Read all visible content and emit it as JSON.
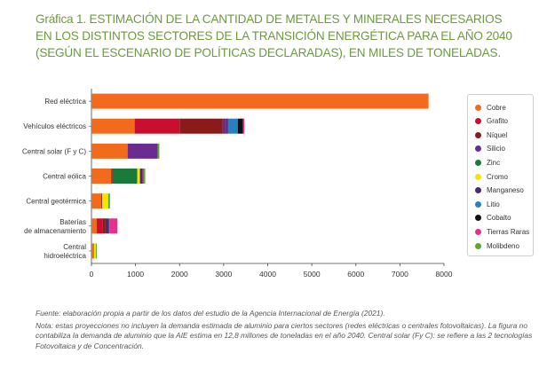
{
  "title": {
    "prefix": "Gráfica 1.",
    "line1": "ESTIMACIÓN DE LA CANTIDAD DE METALES Y MINERALES NECESARIOS",
    "line2": "EN LOS DISTINTOS SECTORES DE LA TRANSICIÓN ENERGÉTICA PARA EL AÑO 2040",
    "line3": "(SEGÚN EL ESCENARIO DE POLÍTICAS DECLARADAS), EN MILES DE TONELADAS."
  },
  "colors": {
    "title": "#6c9a3c",
    "Cobre": "#f26b1d",
    "Grafito": "#c8102e",
    "Níquel": "#8b1a1a",
    "Silicio": "#6a2c91",
    "Zinc": "#1a7a3a",
    "Cromo": "#f2e600",
    "Manganeso": "#4b2a6e",
    "Litio": "#2a7fc1",
    "Cobalto": "#111111",
    "Tierras Raras": "#e8308a",
    "Molibdeno": "#5aa832"
  },
  "chart_data": {
    "type": "bar",
    "orientation": "horizontal",
    "stacked": true,
    "categories": [
      "Red eléctrica",
      "Vehículos eléctricos",
      "Central solar (F y C)",
      "Central eólica",
      "Central geotérmica",
      "Baterías de almacenamiento",
      "Central hidroeléctrica"
    ],
    "category_lines": [
      [
        "Red eléctrica"
      ],
      [
        "Vehículos eléctricos"
      ],
      [
        "Central solar (F y C)"
      ],
      [
        "Central eólica"
      ],
      [
        "Central geotérmica"
      ],
      [
        "Baterías",
        "de almacenamiento"
      ],
      [
        "Central",
        "hidroeléctrica"
      ]
    ],
    "series": [
      {
        "name": "Cobre",
        "values": [
          7650,
          980,
          820,
          450,
          220,
          120,
          60
        ]
      },
      {
        "name": "Grafito",
        "values": [
          0,
          1020,
          0,
          0,
          0,
          140,
          0
        ]
      },
      {
        "name": "Níquel",
        "values": [
          0,
          980,
          0,
          30,
          20,
          60,
          0
        ]
      },
      {
        "name": "Silicio",
        "values": [
          0,
          80,
          680,
          0,
          0,
          0,
          0
        ]
      },
      {
        "name": "Zinc",
        "values": [
          0,
          0,
          0,
          560,
          0,
          0,
          0
        ]
      },
      {
        "name": "Cromo",
        "values": [
          0,
          0,
          0,
          60,
          140,
          0,
          40
        ]
      },
      {
        "name": "Manganeso",
        "values": [
          0,
          40,
          0,
          60,
          0,
          80,
          0
        ]
      },
      {
        "name": "Litio",
        "values": [
          0,
          220,
          0,
          0,
          0,
          20,
          0
        ]
      },
      {
        "name": "Cobalto",
        "values": [
          0,
          120,
          0,
          0,
          0,
          0,
          0
        ]
      },
      {
        "name": "Tierras Raras",
        "values": [
          0,
          30,
          0,
          30,
          0,
          170,
          0
        ]
      },
      {
        "name": "Molibdeno",
        "values": [
          0,
          0,
          40,
          30,
          40,
          0,
          20
        ]
      }
    ],
    "xlim": [
      0,
      8000
    ],
    "xticks": [
      0,
      1000,
      2000,
      3000,
      4000,
      5000,
      6000,
      7000,
      8000
    ],
    "xlabel": "",
    "ylabel": "",
    "grid": false,
    "legend": "right"
  },
  "footer": {
    "source": "Fuente: elaboración propia a partir de los datos del estudio de la Agencia Internacional de Energía (2021).",
    "note": "Nota: estas proyecciones no incluyen la demanda estimada de aluminio para ciertos sectores (redes eléctricas o centrales fotovoltaicas). La figura no contabiliza la demanda de aluminio que la AIE  estima en 12,8 millones de toneladas en el año 2040. Central solar (Fy C): se refiere a las 2 tecnologías Fotovoltaica y de Concentración."
  }
}
